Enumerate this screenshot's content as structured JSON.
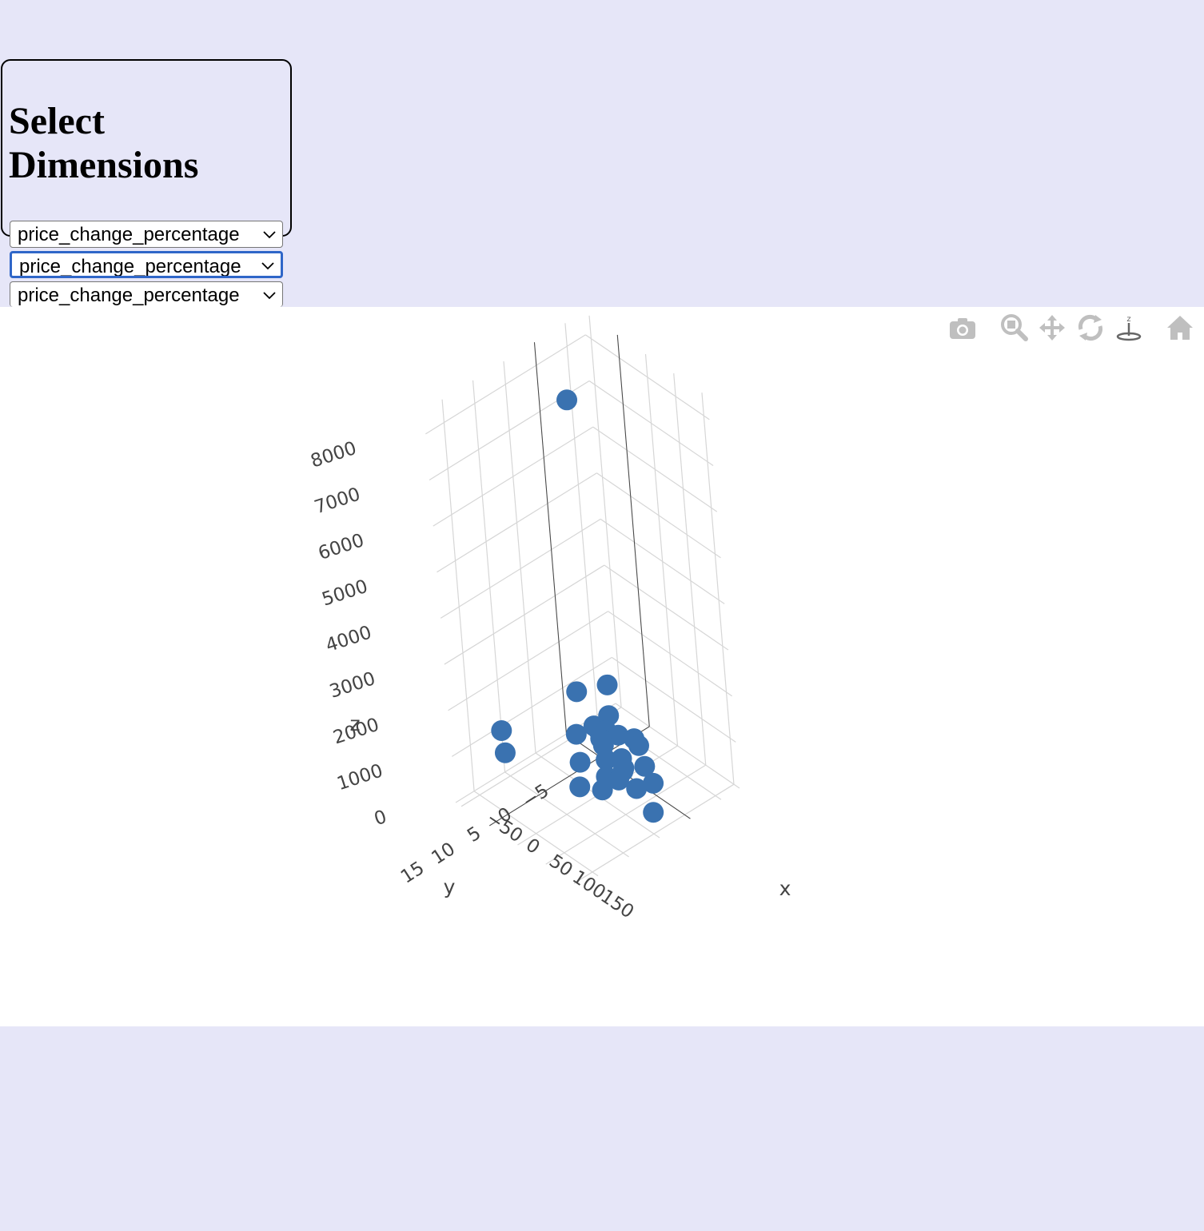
{
  "panel": {
    "title": "Select Dimensions"
  },
  "selects": [
    {
      "value": "price_change_percentage",
      "focused": false
    },
    {
      "value": "price_change_percentage",
      "focused": true
    },
    {
      "value": "price_change_percentage",
      "focused": false
    }
  ],
  "modebar": {
    "buttons": [
      "camera-icon",
      "zoom-icon",
      "pan-icon",
      "orbit-rotation-icon",
      "turntable-rotation-icon",
      "reset-camera-icon"
    ],
    "color": "#bfbfbf"
  },
  "chart_data": {
    "type": "scatter3d",
    "marker_color": "#3a72b0",
    "axes": {
      "x": {
        "title": "x",
        "ticks": [
          "−50",
          "0",
          "50",
          "100",
          "150"
        ]
      },
      "y": {
        "title": "y",
        "ticks": [
          "−5",
          "0",
          "5",
          "10",
          "15"
        ]
      },
      "z": {
        "title": "z",
        "ticks": [
          "0",
          "1000",
          "2000",
          "3000",
          "4000",
          "5000",
          "6000",
          "7000",
          "8000"
        ]
      }
    },
    "points": [
      {
        "x": -20,
        "y": -1,
        "z": 7500
      },
      {
        "x": -60,
        "y": 10,
        "z": 900
      },
      {
        "x": -20,
        "y": 13,
        "z": 1000
      },
      {
        "x": -10,
        "y": 2,
        "z": 1500
      },
      {
        "x": 0,
        "y": -2,
        "z": 1400
      },
      {
        "x": -5,
        "y": 3,
        "z": 700
      },
      {
        "x": 10,
        "y": 4,
        "z": 300
      },
      {
        "x": 30,
        "y": 6,
        "z": 100
      },
      {
        "x": 60,
        "y": 5,
        "z": 200
      },
      {
        "x": 80,
        "y": 4,
        "z": 500
      },
      {
        "x": 100,
        "y": 3,
        "z": 400
      },
      {
        "x": 120,
        "y": 2,
        "z": 600
      },
      {
        "x": 140,
        "y": 4,
        "z": 300
      },
      {
        "x": 20,
        "y": 1,
        "z": 500
      },
      {
        "x": 15,
        "y": 0,
        "z": 700
      },
      {
        "x": 25,
        "y": -1,
        "z": 600
      },
      {
        "x": 35,
        "y": 2,
        "z": 400
      },
      {
        "x": 40,
        "y": 0,
        "z": 300
      },
      {
        "x": 5,
        "y": 1,
        "z": 800
      },
      {
        "x": 45,
        "y": 3,
        "z": 200
      },
      {
        "x": 55,
        "y": 1,
        "z": 300
      },
      {
        "x": 50,
        "y": -2,
        "z": 500
      },
      {
        "x": 65,
        "y": 2,
        "z": 400
      },
      {
        "x": 70,
        "y": -1,
        "z": 300
      },
      {
        "x": 30,
        "y": -3,
        "z": 400
      },
      {
        "x": 10,
        "y": -1,
        "z": 900
      },
      {
        "x": 0,
        "y": 0,
        "z": 600
      },
      {
        "x": 28,
        "y": 2,
        "z": 800
      }
    ]
  }
}
